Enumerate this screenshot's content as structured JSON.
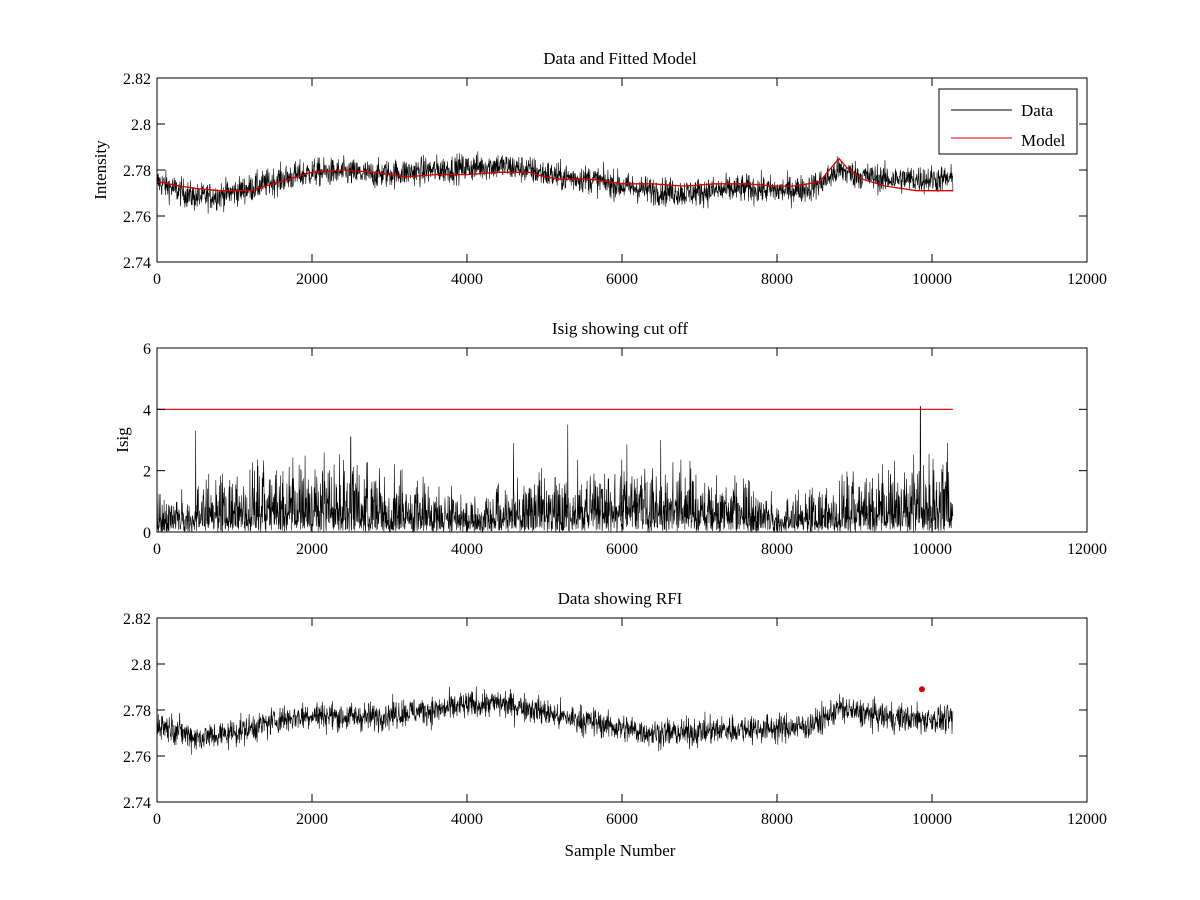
{
  "chart_data": [
    {
      "type": "line",
      "title": "Data and Fitted Model",
      "xlabel": "",
      "ylabel": "Intensity",
      "xlim": [
        0,
        12000
      ],
      "ylim": [
        2.74,
        2.82
      ],
      "xticks": [
        "0",
        "2000",
        "4000",
        "6000",
        "8000",
        "10000",
        "12000"
      ],
      "yticks": [
        "2.74",
        "2.76",
        "2.78",
        "2.8",
        "2.82"
      ],
      "grid": false,
      "legend": {
        "placement": "top-right",
        "entries": [
          "Data",
          "Model"
        ]
      },
      "series": [
        {
          "name": "Data",
          "color": "#000000",
          "style": "noisy-envelope",
          "x": [
            0,
            200,
            500,
            800,
            1200,
            1600,
            2000,
            2400,
            2800,
            3200,
            3600,
            4000,
            4400,
            4800,
            5200,
            5600,
            6000,
            6400,
            6800,
            7200,
            7600,
            8000,
            8400,
            8600,
            8800,
            9000,
            9400,
            9800,
            10270
          ],
          "mean": [
            2.775,
            2.772,
            2.768,
            2.769,
            2.772,
            2.776,
            2.779,
            2.779,
            2.778,
            2.779,
            2.78,
            2.781,
            2.782,
            2.78,
            2.777,
            2.776,
            2.773,
            2.771,
            2.77,
            2.771,
            2.772,
            2.771,
            2.772,
            2.775,
            2.78,
            2.778,
            2.776,
            2.776,
            2.776
          ],
          "noise": 0.005
        },
        {
          "name": "Model",
          "color": "#d40000",
          "style": "line",
          "x": [
            0,
            300,
            500,
            800,
            1200,
            1600,
            2000,
            2400,
            2800,
            3200,
            3600,
            4000,
            4400,
            4800,
            5000,
            5200,
            5600,
            6000,
            6400,
            6800,
            7200,
            7600,
            8000,
            8200,
            8400,
            8550,
            8700,
            8800,
            8900,
            9100,
            9400,
            9800,
            10270
          ],
          "y": [
            2.775,
            2.773,
            2.772,
            2.771,
            2.771,
            2.775,
            2.779,
            2.78,
            2.779,
            2.777,
            2.778,
            2.778,
            2.779,
            2.779,
            2.777,
            2.776,
            2.776,
            2.774,
            2.774,
            2.773,
            2.774,
            2.774,
            2.773,
            2.773,
            2.774,
            2.775,
            2.781,
            2.785,
            2.781,
            2.776,
            2.773,
            2.771,
            2.771
          ]
        }
      ]
    },
    {
      "type": "line",
      "title": "Isig showing cut off",
      "xlabel": "",
      "ylabel": "Isig",
      "xlim": [
        0,
        12000
      ],
      "ylim": [
        0,
        6
      ],
      "xticks": [
        "0",
        "2000",
        "4000",
        "6000",
        "8000",
        "10000",
        "12000"
      ],
      "yticks": [
        "0",
        "2",
        "4",
        "6"
      ],
      "grid": false,
      "series": [
        {
          "name": "Isig",
          "color": "#000000",
          "style": "noisy-spikes",
          "x_range": [
            0,
            10270
          ],
          "typical_max": 2.0,
          "peaks": [
            [
              500,
              3.3
            ],
            [
              2500,
              3.1
            ],
            [
              4600,
              2.9
            ],
            [
              5300,
              3.5
            ],
            [
              6500,
              3.0
            ],
            [
              9850,
              4.1
            ],
            [
              10200,
              2.9
            ]
          ]
        },
        {
          "name": "Cut off",
          "color": "#d40000",
          "style": "line",
          "x": [
            0,
            10270
          ],
          "y": [
            4,
            4
          ]
        }
      ]
    },
    {
      "type": "line",
      "title": "Data showing RFI",
      "xlabel": "Sample Number",
      "ylabel": "",
      "xlim": [
        0,
        12000
      ],
      "ylim": [
        2.74,
        2.82
      ],
      "xticks": [
        "0",
        "2000",
        "4000",
        "6000",
        "8000",
        "10000",
        "12000"
      ],
      "yticks": [
        "2.74",
        "2.76",
        "2.78",
        "2.8",
        "2.82"
      ],
      "grid": false,
      "series": [
        {
          "name": "Data",
          "color": "#000000",
          "style": "noisy-envelope",
          "x": [
            0,
            200,
            500,
            800,
            1200,
            1600,
            2000,
            2400,
            2800,
            3200,
            3600,
            4000,
            4400,
            4800,
            5200,
            5600,
            6000,
            6400,
            6800,
            7200,
            7600,
            8000,
            8400,
            8600,
            8800,
            9000,
            9400,
            9800,
            10270
          ],
          "mean": [
            2.774,
            2.772,
            2.768,
            2.769,
            2.772,
            2.776,
            2.778,
            2.777,
            2.777,
            2.779,
            2.78,
            2.782,
            2.783,
            2.781,
            2.777,
            2.775,
            2.772,
            2.77,
            2.77,
            2.771,
            2.772,
            2.772,
            2.773,
            2.776,
            2.781,
            2.779,
            2.777,
            2.776,
            2.776
          ],
          "noise": 0.005
        },
        {
          "name": "RFI",
          "color": "#d40000",
          "style": "markers",
          "x": [
            9870
          ],
          "y": [
            2.789
          ]
        }
      ]
    }
  ]
}
